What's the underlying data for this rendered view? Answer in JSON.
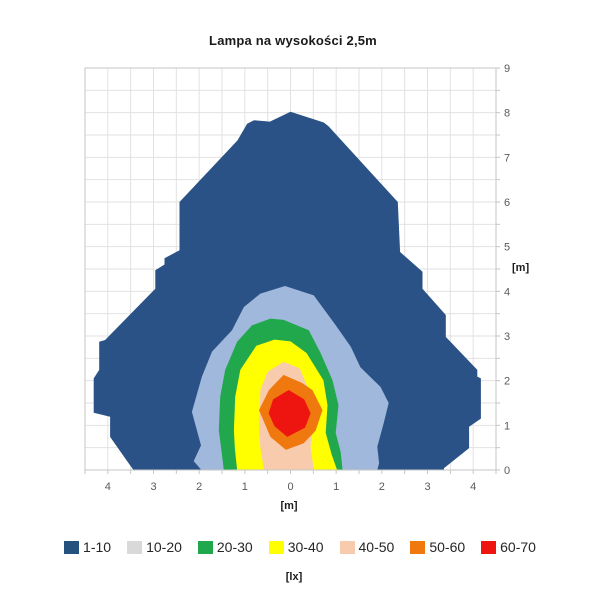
{
  "chart_data": {
    "type": "filled-contour",
    "title": "Lampa na wysokości 2,5m",
    "unit_label": "[lx]",
    "x_axis": {
      "label": "[m]",
      "min": -4.5,
      "max": 4.5,
      "grid_step": 0.5,
      "tick_label_step": 1,
      "tick_labels_absolute": true
    },
    "y_axis": {
      "label": "[m]",
      "min": 0,
      "max": 9,
      "grid_step": 0.5,
      "tick_label_step": 1,
      "side": "right"
    },
    "colors": {
      "grid": "#e2e2e2",
      "axis": "#c6c6c6",
      "tick_text": "#595959"
    },
    "legend_position": "bottom",
    "legend": [
      {
        "label": "1-10",
        "color": "#24517E"
      },
      {
        "label": "10-20",
        "color": "#D9D9D9"
      },
      {
        "label": "20-30",
        "color": "#21A84C"
      },
      {
        "label": "30-40",
        "color": "#FFFF00"
      },
      {
        "label": "40-50",
        "color": "#F8CBAD"
      },
      {
        "label": "50-60",
        "color": "#F0790F"
      },
      {
        "label": "60-70",
        "color": "#EE1511"
      }
    ],
    "regions": [
      {
        "label": "1-10",
        "fill": "#2A5286",
        "closes_on_bottom": true,
        "points": [
          [
            -3.44,
            0
          ],
          [
            -3.95,
            0.74
          ],
          [
            -3.95,
            1.19
          ],
          [
            -4.31,
            1.28
          ],
          [
            -4.31,
            2.05
          ],
          [
            -4.19,
            2.24
          ],
          [
            -4.19,
            2.87
          ],
          [
            -4.06,
            2.91
          ],
          [
            -2.96,
            4.06
          ],
          [
            -2.96,
            4.47
          ],
          [
            -2.76,
            4.6
          ],
          [
            -2.76,
            4.74
          ],
          [
            -2.43,
            4.92
          ],
          [
            -2.43,
            6.0
          ],
          [
            -1.16,
            7.38
          ],
          [
            -0.95,
            7.75
          ],
          [
            -0.8,
            7.83
          ],
          [
            -0.45,
            7.8
          ],
          [
            0.0,
            8.02
          ],
          [
            0.73,
            7.78
          ],
          [
            0.83,
            7.7
          ],
          [
            2.35,
            6.0
          ],
          [
            2.4,
            4.88
          ],
          [
            2.89,
            4.44
          ],
          [
            2.89,
            4.06
          ],
          [
            3.4,
            3.47
          ],
          [
            3.4,
            2.98
          ],
          [
            4.09,
            2.24
          ],
          [
            4.09,
            2.09
          ],
          [
            4.17,
            2.05
          ],
          [
            4.17,
            1.15
          ],
          [
            3.91,
            0.97
          ],
          [
            3.91,
            0.49
          ],
          [
            3.36,
            0.04
          ],
          [
            3.36,
            0
          ]
        ]
      },
      {
        "label": "10-20",
        "fill": "#9FB8DB",
        "closes_on_bottom": true,
        "points": [
          [
            -1.95,
            0
          ],
          [
            -2.12,
            0.2
          ],
          [
            -1.96,
            0.55
          ],
          [
            -2.16,
            1.3
          ],
          [
            -1.94,
            2.09
          ],
          [
            -1.72,
            2.65
          ],
          [
            -1.28,
            3.13
          ],
          [
            -1.02,
            3.65
          ],
          [
            -0.66,
            3.95
          ],
          [
            -0.12,
            4.12
          ],
          [
            0.51,
            3.91
          ],
          [
            0.99,
            3.24
          ],
          [
            1.32,
            2.76
          ],
          [
            1.53,
            2.3
          ],
          [
            1.97,
            1.86
          ],
          [
            2.15,
            1.5
          ],
          [
            2.04,
            1.05
          ],
          [
            1.9,
            0.52
          ],
          [
            1.94,
            0.15
          ],
          [
            1.9,
            0
          ]
        ]
      },
      {
        "label": "20-30",
        "fill": "#21A84C",
        "closes_on_bottom": true,
        "points": [
          [
            -1.46,
            0
          ],
          [
            -1.52,
            0.5
          ],
          [
            -1.57,
            0.89
          ],
          [
            -1.54,
            1.64
          ],
          [
            -1.43,
            2.24
          ],
          [
            -1.17,
            2.87
          ],
          [
            -0.84,
            3.24
          ],
          [
            -0.44,
            3.39
          ],
          [
            -0.15,
            3.36
          ],
          [
            0.4,
            3.13
          ],
          [
            0.66,
            2.62
          ],
          [
            0.92,
            2.01
          ],
          [
            1.05,
            1.45
          ],
          [
            0.99,
            0.83
          ],
          [
            1.1,
            0.4
          ],
          [
            1.14,
            0
          ]
        ]
      },
      {
        "label": "30-40",
        "fill": "#FFFF00",
        "closes_on_bottom": true,
        "points": [
          [
            -1.17,
            0
          ],
          [
            -1.22,
            0.5
          ],
          [
            -1.24,
            0.89
          ],
          [
            -1.21,
            1.64
          ],
          [
            -1.1,
            2.24
          ],
          [
            -0.75,
            2.78
          ],
          [
            -0.35,
            2.92
          ],
          [
            0.0,
            2.88
          ],
          [
            0.35,
            2.62
          ],
          [
            0.72,
            2.01
          ],
          [
            0.81,
            1.45
          ],
          [
            0.77,
            0.83
          ],
          [
            0.9,
            0.35
          ],
          [
            1.02,
            0
          ]
        ]
      },
      {
        "label": "40-50",
        "fill": "#F8CBAD",
        "closes_on_bottom": true,
        "points": [
          [
            -0.58,
            0
          ],
          [
            -0.66,
            0.5
          ],
          [
            -0.69,
            0.89
          ],
          [
            -0.66,
            1.79
          ],
          [
            -0.5,
            2.2
          ],
          [
            -0.15,
            2.42
          ],
          [
            0.2,
            2.28
          ],
          [
            0.48,
            1.61
          ],
          [
            0.51,
            1.04
          ],
          [
            0.44,
            0.52
          ],
          [
            0.51,
            0
          ]
        ]
      },
      {
        "label": "50-60",
        "fill": "#F0790F",
        "closes_on_bottom": false,
        "points": [
          [
            -0.15,
            2.13
          ],
          [
            0.25,
            1.95
          ],
          [
            0.48,
            1.79
          ],
          [
            0.7,
            1.34
          ],
          [
            0.55,
            0.88
          ],
          [
            0.29,
            0.6
          ],
          [
            -0.1,
            0.45
          ],
          [
            -0.44,
            0.74
          ],
          [
            -0.69,
            1.34
          ],
          [
            -0.47,
            1.79
          ]
        ]
      },
      {
        "label": "60-70",
        "fill": "#EE1511",
        "closes_on_bottom": false,
        "points": [
          [
            -0.04,
            1.79
          ],
          [
            0.3,
            1.58
          ],
          [
            0.44,
            1.27
          ],
          [
            0.32,
            0.95
          ],
          [
            -0.07,
            0.74
          ],
          [
            -0.35,
            0.98
          ],
          [
            -0.48,
            1.27
          ],
          [
            -0.38,
            1.58
          ]
        ]
      }
    ]
  }
}
